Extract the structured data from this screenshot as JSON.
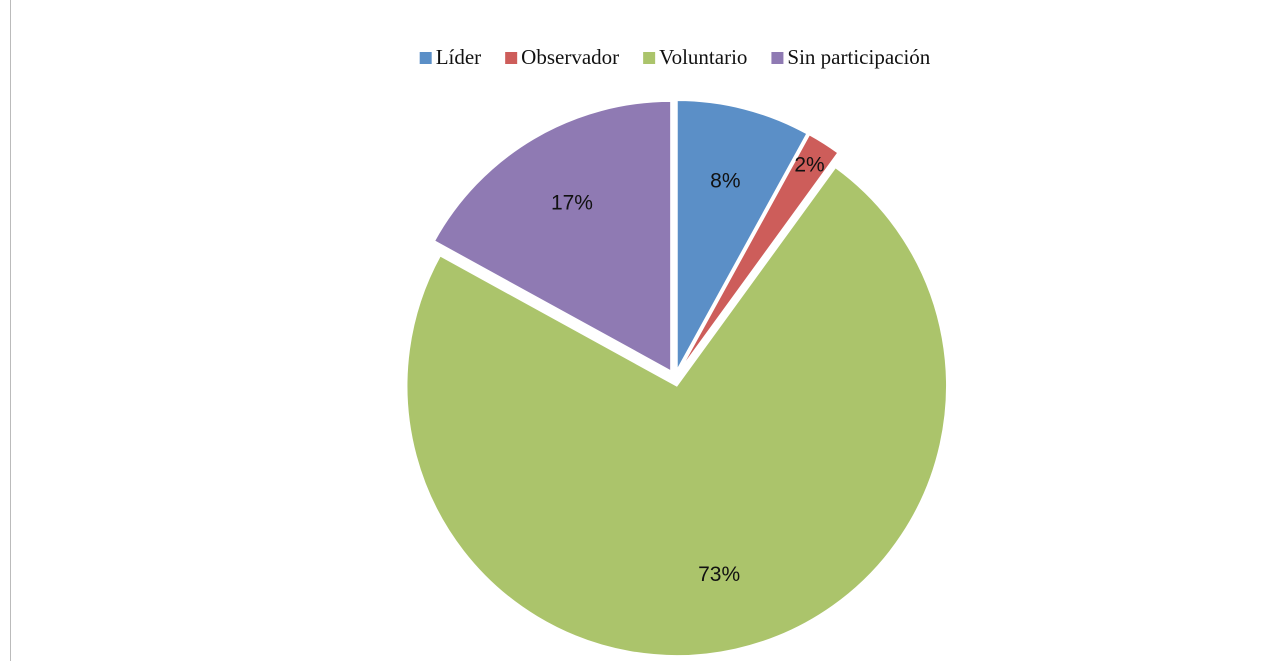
{
  "chart_data": {
    "type": "pie",
    "categories": [
      "Líder",
      "Observador",
      "Voluntario",
      "Sin participación"
    ],
    "values": [
      8,
      2,
      73,
      17
    ],
    "value_labels": [
      "8%",
      "2%",
      "73%",
      "17%"
    ],
    "colors": [
      "#5b8fc7",
      "#cd5d5a",
      "#abc46b",
      "#8f7ab3"
    ],
    "legend": "top",
    "exploded": true
  }
}
